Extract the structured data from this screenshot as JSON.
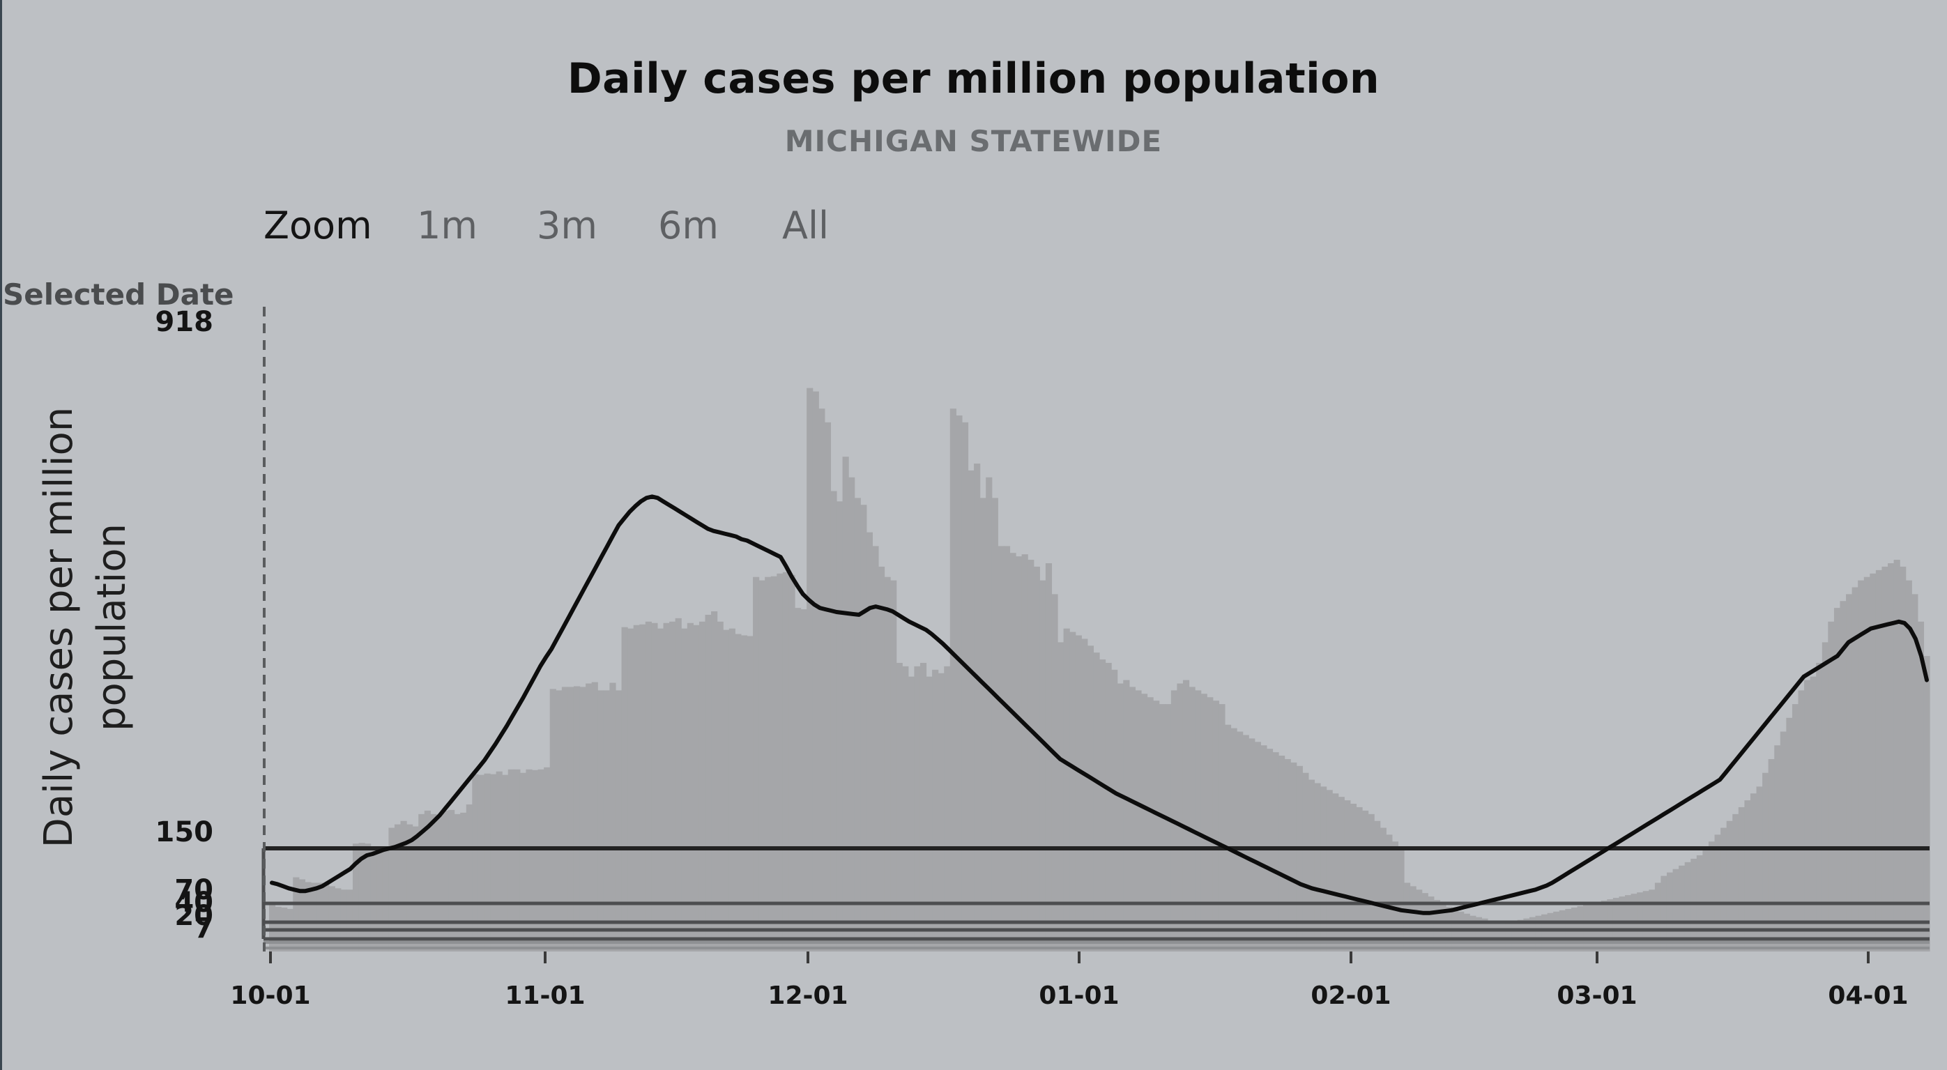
{
  "title": "Daily cases per million population",
  "subtitle": "MICHIGAN STATEWIDE",
  "zoom": {
    "label": "Zoom",
    "options": [
      "1m",
      "3m",
      "6m",
      "All"
    ]
  },
  "selected_date_label": "Selected Date",
  "colors": {
    "background": "#bdc0c4",
    "bars": "#a5a6a9",
    "line": "#0d0d0d",
    "threshold_lines": "#2b2b2b"
  },
  "chart_data": {
    "type": "bar",
    "ylabel": "Daily cases per million population",
    "xlabel": "",
    "x_tick_labels": [
      "10-01",
      "11-01",
      "12-01",
      "01-01",
      "02-01",
      "03-01",
      "04-01"
    ],
    "y_tick_labels": [
      "918",
      "150",
      "70",
      "40",
      "20",
      "7"
    ],
    "ylim": [
      0,
      918
    ],
    "x_start": "10-01",
    "x_end": "04-09",
    "thresholds": [
      150,
      70,
      40,
      20,
      7
    ],
    "series": [
      {
        "kind": "bar",
        "values": [
          70,
          65,
          64,
          62,
          108,
          105,
          101,
          100,
          100,
          98,
          95,
          92,
          90,
          90,
          157,
          158,
          157,
          152,
          150,
          148,
          180,
          185,
          190,
          185,
          182,
          200,
          205,
          200,
          198,
          205,
          206,
          200,
          202,
          214,
          258,
          257,
          259,
          258,
          262,
          257,
          265,
          265,
          260,
          265,
          264,
          265,
          268,
          382,
          380,
          385,
          385,
          386,
          385,
          390,
          392,
          380,
          380,
          391,
          380,
          472,
          470,
          475,
          476,
          480,
          478,
          470,
          478,
          480,
          485,
          470,
          478,
          475,
          480,
          490,
          495,
          480,
          468,
          470,
          462,
          460,
          459,
          545,
          540,
          545,
          546,
          550,
          552,
          548,
          500,
          498,
          820,
          815,
          790,
          770,
          670,
          655,
          720,
          690,
          660,
          650,
          610,
          590,
          560,
          545,
          540,
          420,
          415,
          400,
          415,
          420,
          400,
          410,
          405,
          415,
          790,
          780,
          770,
          700,
          710,
          660,
          690,
          660,
          590,
          590,
          580,
          575,
          578,
          570,
          560,
          540,
          565,
          520,
          450,
          470,
          465,
          460,
          455,
          445,
          435,
          425,
          420,
          410,
          390,
          395,
          385,
          380,
          375,
          370,
          365,
          360,
          360,
          380,
          390,
          395,
          385,
          380,
          375,
          370,
          365,
          360,
          330,
          325,
          320,
          315,
          310,
          305,
          300,
          295,
          290,
          285,
          280,
          275,
          270,
          260,
          250,
          245,
          240,
          235,
          230,
          225,
          220,
          215,
          210,
          205,
          200,
          190,
          180,
          170,
          160,
          150,
          100,
          95,
          90,
          85,
          80,
          75,
          70,
          65,
          60,
          58,
          55,
          52,
          50,
          48,
          45,
          42,
          40,
          42,
          44,
          46,
          48,
          50,
          52,
          54,
          56,
          58,
          60,
          62,
          64,
          66,
          68,
          70,
          72,
          74,
          76,
          78,
          80,
          82,
          84,
          86,
          88,
          90,
          100,
          110,
          115,
          120,
          125,
          130,
          135,
          140,
          150,
          160,
          170,
          180,
          190,
          200,
          210,
          220,
          230,
          240,
          260,
          280,
          300,
          320,
          340,
          360,
          380,
          395,
          400,
          420,
          450,
          480,
          500,
          510,
          520,
          530,
          540,
          545,
          550,
          555,
          560,
          565,
          570,
          560,
          540,
          520,
          480,
          430
        ],
        "note": ""
      },
      {
        "kind": "line",
        "name": "",
        "values": [
          100,
          98,
          95,
          92,
          90,
          88,
          88,
          90,
          92,
          95,
          100,
          105,
          110,
          115,
          120,
          128,
          135,
          140,
          142,
          145,
          148,
          150,
          152,
          155,
          158,
          162,
          168,
          175,
          182,
          190,
          198,
          208,
          218,
          228,
          238,
          248,
          258,
          268,
          278,
          290,
          302,
          315,
          328,
          342,
          356,
          370,
          385,
          400,
          415,
          428,
          440,
          455,
          470,
          485,
          500,
          515,
          530,
          545,
          560,
          575,
          590,
          605,
          620,
          630,
          640,
          648,
          655,
          660,
          662,
          660,
          655,
          650,
          645,
          640,
          635,
          630,
          625,
          620,
          615,
          612,
          610,
          608,
          606,
          604,
          600,
          598,
          594,
          590,
          586,
          582,
          578,
          574,
          560,
          545,
          532,
          520,
          512,
          505,
          500,
          498,
          496,
          494,
          493,
          492,
          491,
          490,
          495,
          500,
          502,
          500,
          498,
          495,
          490,
          485,
          480,
          476,
          472,
          468,
          462,
          455,
          448,
          440,
          432,
          424,
          416,
          408,
          400,
          392,
          384,
          376,
          368,
          360,
          352,
          344,
          336,
          328,
          320,
          312,
          304,
          296,
          288,
          280,
          275,
          270,
          265,
          260,
          255,
          250,
          245,
          240,
          235,
          230,
          226,
          222,
          218,
          214,
          210,
          206,
          202,
          198,
          194,
          190,
          186,
          182,
          178,
          174,
          170,
          166,
          162,
          158,
          154,
          150,
          146,
          142,
          138,
          134,
          130,
          126,
          122,
          118,
          114,
          110,
          106,
          102,
          98,
          95,
          92,
          90,
          88,
          86,
          84,
          82,
          80,
          78,
          76,
          74,
          72,
          70,
          68,
          66,
          64,
          62,
          60,
          59,
          58,
          57,
          56,
          56,
          57,
          58,
          59,
          60,
          62,
          64,
          66,
          68,
          70,
          72,
          74,
          76,
          78,
          80,
          82,
          84,
          86,
          88,
          90,
          93,
          96,
          100,
          105,
          110,
          115,
          120,
          125,
          130,
          135,
          140,
          145,
          150,
          155,
          160,
          165,
          170,
          175,
          180,
          185,
          190,
          195,
          200,
          205,
          210,
          215,
          220,
          225,
          230,
          235,
          240,
          245,
          250,
          260,
          270,
          280,
          290,
          300,
          310,
          320,
          330,
          340,
          350,
          360,
          370,
          380,
          390,
          400,
          405,
          410,
          415,
          420,
          425,
          430,
          440,
          450,
          455,
          460,
          465,
          470,
          472,
          474,
          476,
          478,
          480,
          478,
          470,
          455,
          430,
          395
        ]
      }
    ],
    "grid": false,
    "legend": "none"
  }
}
